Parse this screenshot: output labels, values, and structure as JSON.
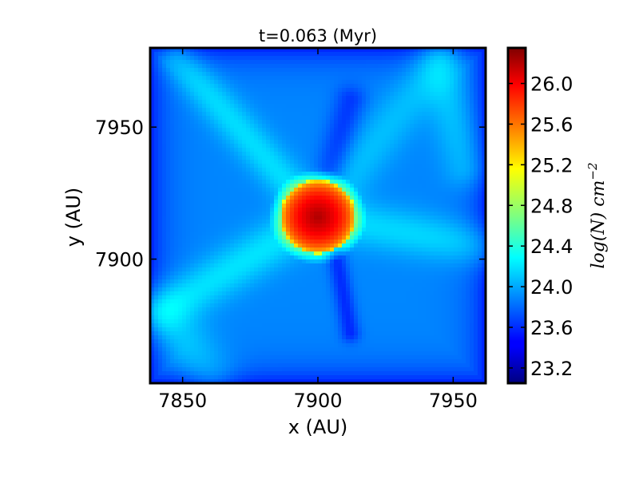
{
  "chart_data": {
    "type": "heatmap",
    "title": "t=0.063 (Myr)",
    "xlabel": "x (AU)",
    "ylabel": "y (AU)",
    "xlim": [
      7838,
      7962
    ],
    "ylim": [
      7853,
      7980
    ],
    "x_ticks": [
      7850,
      7900,
      7950
    ],
    "x_tick_labels": [
      "7850",
      "7900",
      "7950"
    ],
    "y_ticks": [
      7900,
      7950
    ],
    "y_tick_labels": [
      "7900",
      "7950"
    ],
    "colormap": "jet",
    "colorbar": {
      "label": "log(N) cm^-2",
      "label_main": "log(N) cm",
      "label_exp": "−2",
      "range": [
        23.05,
        26.35
      ],
      "ticks": [
        23.2,
        23.6,
        24.0,
        24.4,
        24.8,
        25.2,
        25.6,
        26.0
      ],
      "tick_labels": [
        "23.2",
        "23.6",
        "24.0",
        "24.4",
        "24.8",
        "25.2",
        "25.6",
        "26.0"
      ]
    },
    "features": {
      "core_center": [
        7900,
        7916
      ],
      "core_radius_au": 14,
      "core_peak_logN": 26.2,
      "background_logN": 23.9
    }
  }
}
